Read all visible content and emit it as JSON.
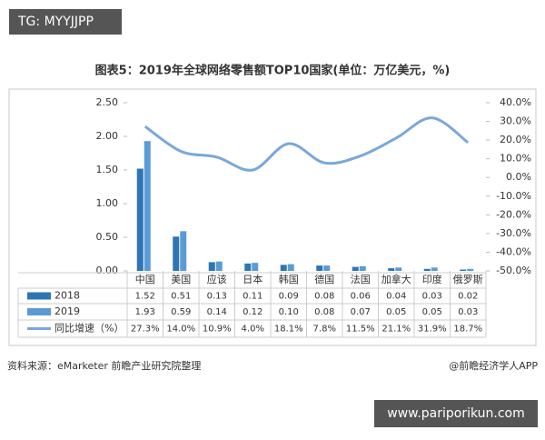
{
  "header": {
    "tag": "TG: MYYJJPP"
  },
  "chart_data": {
    "type": "bar",
    "title": "图表5：2019年全球网络零售额TOP10国家(单位：万亿美元，%)",
    "categories": [
      "中国",
      "美国",
      "应该",
      "日本",
      "韩国",
      "德国",
      "法国",
      "加拿大",
      "印度",
      "俄罗斯"
    ],
    "series": [
      {
        "name": "2018",
        "color": "#2e75b6",
        "values": [
          1.52,
          0.51,
          0.13,
          0.11,
          0.09,
          0.08,
          0.06,
          0.04,
          0.03,
          0.02
        ],
        "value_labels": [
          "1.52",
          "0.51",
          "0.13",
          "0.11",
          "0.09",
          "0.08",
          "0.06",
          "0.04",
          "0.03",
          "0.02"
        ]
      },
      {
        "name": "2019",
        "color": "#5b9bd5",
        "values": [
          1.93,
          0.59,
          0.14,
          0.12,
          0.1,
          0.08,
          0.07,
          0.05,
          0.05,
          0.03
        ],
        "value_labels": [
          "1.93",
          "0.59",
          "0.14",
          "0.12",
          "0.10",
          "0.08",
          "0.07",
          "0.05",
          "0.05",
          "0.03"
        ]
      },
      {
        "name": "同比增速（%）",
        "color": "#7ba7d9",
        "type": "line",
        "axis": "y2",
        "values": [
          27.3,
          14.0,
          10.9,
          4.0,
          18.1,
          7.8,
          11.5,
          21.1,
          31.9,
          18.7
        ],
        "value_labels": [
          "27.3%",
          "14.0%",
          "10.9%",
          "4.0%",
          "18.1%",
          "7.8%",
          "11.5%",
          "21.1%",
          "31.9%",
          "18.7%"
        ]
      }
    ],
    "ylim": [
      0,
      2.5
    ],
    "yticks": [
      {
        "value": 0,
        "label": "0.00"
      },
      {
        "value": 0.5,
        "label": "0.50"
      },
      {
        "value": 1,
        "label": "1.00"
      },
      {
        "value": 1.5,
        "label": "1.50"
      },
      {
        "value": 2,
        "label": "2.00"
      },
      {
        "value": 2.5,
        "label": "2.50"
      }
    ],
    "y2lim": [
      -50,
      40
    ],
    "y2ticks": [
      {
        "value": -50,
        "label": "-50.0%"
      },
      {
        "value": -40,
        "label": "-40.0%"
      },
      {
        "value": -30,
        "label": "-30.0%"
      },
      {
        "value": -20,
        "label": "-20.0%"
      },
      {
        "value": -10,
        "label": "-10.0%"
      },
      {
        "value": 0,
        "label": "0.0%"
      },
      {
        "value": 10,
        "label": "10.0%"
      },
      {
        "value": 20,
        "label": "20.0%"
      },
      {
        "value": 30,
        "label": "30.0%"
      },
      {
        "value": 40,
        "label": "40.0%"
      }
    ]
  },
  "footer": {
    "source": "资料来源：eMarketer 前瞻产业研究院整理",
    "credit": "@前瞻经济学人APP",
    "watermark": "www.pariporikun.com"
  }
}
